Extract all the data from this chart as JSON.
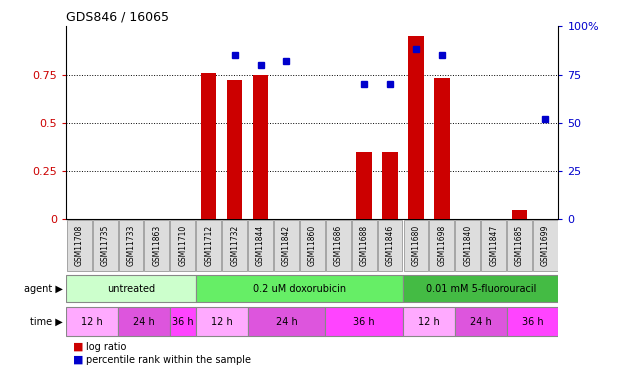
{
  "title": "GDS846 / 16065",
  "samples": [
    "GSM11708",
    "GSM11735",
    "GSM11733",
    "GSM11863",
    "GSM11710",
    "GSM11712",
    "GSM11732",
    "GSM11844",
    "GSM11842",
    "GSM11860",
    "GSM11686",
    "GSM11688",
    "GSM11846",
    "GSM11680",
    "GSM11698",
    "GSM11840",
    "GSM11847",
    "GSM11685",
    "GSM11699"
  ],
  "log_ratio": [
    0,
    0,
    0,
    0,
    0,
    0.76,
    0.72,
    0.75,
    0,
    0,
    0,
    0.35,
    0.35,
    0.95,
    0.73,
    0,
    0,
    0.05,
    0
  ],
  "pct_rank": [
    null,
    null,
    null,
    null,
    null,
    null,
    85,
    80,
    82,
    null,
    null,
    70,
    70,
    88,
    85,
    null,
    null,
    null,
    52
  ],
  "ylim_left": [
    0,
    1.0
  ],
  "ylim_right": [
    0,
    100
  ],
  "yticks_left": [
    0,
    0.25,
    0.5,
    0.75
  ],
  "yticks_right": [
    0,
    25,
    50,
    75,
    100
  ],
  "agents": [
    {
      "label": "untreated",
      "start": 0,
      "end": 5,
      "color": "#ccffcc"
    },
    {
      "label": "0.2 uM doxorubicin",
      "start": 5,
      "end": 13,
      "color": "#66ee66"
    },
    {
      "label": "0.01 mM 5-fluorouracil",
      "start": 13,
      "end": 19,
      "color": "#44bb44"
    }
  ],
  "times": [
    {
      "label": "12 h",
      "start": 0,
      "end": 2,
      "color": "#ffaaff"
    },
    {
      "label": "24 h",
      "start": 2,
      "end": 4,
      "color": "#dd55dd"
    },
    {
      "label": "36 h",
      "start": 4,
      "end": 5,
      "color": "#ff44ff"
    },
    {
      "label": "12 h",
      "start": 5,
      "end": 7,
      "color": "#ffaaff"
    },
    {
      "label": "24 h",
      "start": 7,
      "end": 10,
      "color": "#dd55dd"
    },
    {
      "label": "36 h",
      "start": 10,
      "end": 13,
      "color": "#ff44ff"
    },
    {
      "label": "12 h",
      "start": 13,
      "end": 15,
      "color": "#ffaaff"
    },
    {
      "label": "24 h",
      "start": 15,
      "end": 17,
      "color": "#dd55dd"
    },
    {
      "label": "36 h",
      "start": 17,
      "end": 19,
      "color": "#ff44ff"
    }
  ],
  "bar_color": "#cc0000",
  "dot_color": "#0000cc",
  "background_color": "#ffffff",
  "axis_color_left": "#cc0000",
  "axis_color_right": "#0000cc",
  "sample_box_color": "#dddddd",
  "sample_box_edge": "#888888"
}
